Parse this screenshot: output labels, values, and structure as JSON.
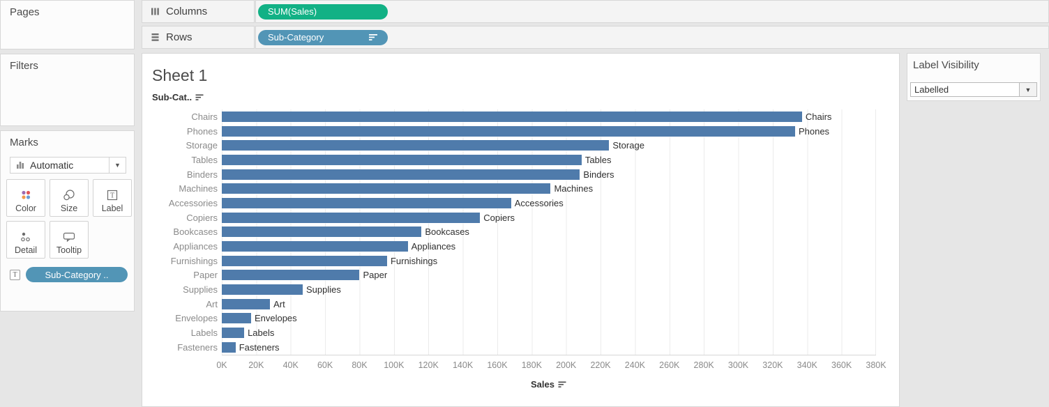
{
  "shelves": {
    "columns": {
      "label": "Columns",
      "pill": "SUM(Sales)"
    },
    "rows": {
      "label": "Rows",
      "pill": "Sub-Category"
    }
  },
  "sidebar": {
    "pages_label": "Pages",
    "filters_label": "Filters",
    "marks": {
      "title": "Marks",
      "mark_type": "Automatic",
      "buttons": [
        {
          "label": "Color"
        },
        {
          "label": "Size"
        },
        {
          "label": "Label"
        },
        {
          "label": "Detail"
        },
        {
          "label": "Tooltip"
        }
      ],
      "label_pill": "Sub-Category .."
    }
  },
  "right_panel": {
    "title": "Label Visibility",
    "dropdown_value": "Labelled"
  },
  "colors": {
    "measure_pill_green": "#12b185",
    "dimension_pill_blue": "#5295b6",
    "bar_blue": "#4f7bab"
  },
  "chart_data": {
    "type": "bar",
    "orientation": "horizontal",
    "title": "Sheet 1",
    "row_header": "Sub-Cat..",
    "xlabel": "Sales",
    "sort": "descending by Sales",
    "categories": [
      "Chairs",
      "Phones",
      "Storage",
      "Tables",
      "Binders",
      "Machines",
      "Accessories",
      "Copiers",
      "Bookcases",
      "Appliances",
      "Furnishings",
      "Paper",
      "Supplies",
      "Art",
      "Envelopes",
      "Labels",
      "Fasteners"
    ],
    "values_k": [
      337,
      333,
      225,
      209,
      208,
      191,
      168,
      150,
      116,
      108,
      96,
      80,
      47,
      28,
      17,
      13,
      8
    ],
    "bar_labels_shown": true,
    "xmax_k": 380,
    "xlim": [
      0,
      380000
    ],
    "grid": "vertical gridlines every 20K",
    "tick_labels": [
      "0K",
      "20K",
      "40K",
      "60K",
      "80K",
      "100K",
      "120K",
      "140K",
      "160K",
      "180K",
      "200K",
      "220K",
      "240K",
      "260K",
      "280K",
      "300K",
      "320K",
      "340K",
      "360K",
      "380K"
    ],
    "bar_color": "#4f7bab"
  }
}
